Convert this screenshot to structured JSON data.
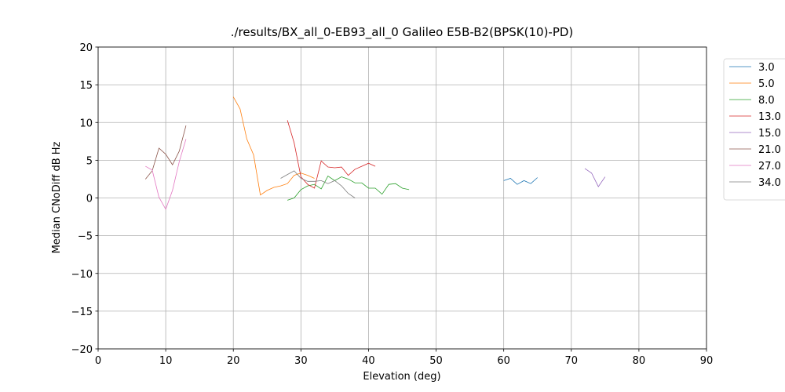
{
  "chart_data": {
    "type": "line",
    "title": "./results/BX_all_0-EB93_all_0 Galileo E5B-B2(BPSK(10)-PD)",
    "x_label": "Elevation (deg)",
    "y_label": "Median CNoDiff dB Hz",
    "xlim": [
      0,
      90
    ],
    "xticks": [
      0,
      10,
      20,
      30,
      40,
      50,
      60,
      70,
      80,
      90
    ],
    "ylim": [
      -20,
      20
    ],
    "yticks": [
      {
        "value": -20,
        "label": "−20"
      },
      {
        "value": -15,
        "label": "−15"
      },
      {
        "value": -10,
        "label": "−10"
      },
      {
        "value": -5,
        "label": "−5"
      },
      0,
      5,
      10,
      15,
      20
    ],
    "grid": true,
    "legend": "right",
    "series": [
      {
        "name": "3.0",
        "color": "#1f77b4",
        "x": [
          60,
          61,
          62,
          63,
          64,
          65
        ],
        "values": [
          2.3,
          2.6,
          1.8,
          2.3,
          1.9,
          2.7
        ]
      },
      {
        "name": "5.0",
        "color": "#ff7f0e",
        "x": [
          20,
          21,
          22,
          23,
          24,
          25,
          26,
          27,
          28,
          29,
          30,
          31,
          32
        ],
        "values": [
          13.4,
          11.8,
          7.8,
          5.7,
          0.4,
          1.0,
          1.4,
          1.6,
          1.9,
          3.0,
          3.3,
          3.0,
          2.6
        ]
      },
      {
        "name": "8.0",
        "color": "#2ca02c",
        "x": [
          28,
          29,
          30,
          31,
          32,
          33,
          34,
          35,
          36,
          37,
          38,
          39,
          40,
          41,
          42,
          43,
          44,
          45,
          46
        ],
        "values": [
          -0.3,
          0.0,
          1.1,
          1.6,
          1.8,
          1.2,
          2.9,
          2.3,
          2.8,
          2.5,
          2.0,
          2.0,
          1.3,
          1.3,
          0.5,
          1.8,
          1.9,
          1.3,
          1.1
        ]
      },
      {
        "name": "13.0",
        "color": "#d62728",
        "x": [
          28,
          29,
          30,
          31,
          32,
          33,
          34,
          35,
          36,
          37,
          38,
          39,
          40,
          41
        ],
        "values": [
          10.3,
          7.3,
          2.8,
          1.8,
          1.3,
          4.9,
          4.1,
          4.0,
          4.1,
          3.0,
          3.8,
          4.2,
          4.6,
          4.2
        ]
      },
      {
        "name": "15.0",
        "color": "#9467bd",
        "x": [
          72,
          73,
          74,
          75
        ],
        "values": [
          3.9,
          3.3,
          1.5,
          2.8
        ]
      },
      {
        "name": "21.0",
        "color": "#8c564b",
        "x": [
          7,
          8,
          9,
          10,
          11,
          12,
          13
        ],
        "values": [
          2.5,
          3.6,
          6.6,
          5.8,
          4.4,
          6.2,
          9.6
        ]
      },
      {
        "name": "27.0",
        "color": "#e377c2",
        "x": [
          7,
          8,
          9,
          10,
          11,
          12,
          13
        ],
        "values": [
          4.2,
          3.7,
          0.1,
          -1.5,
          1.0,
          4.8,
          7.8
        ]
      },
      {
        "name": "34.0",
        "color": "#7f7f7f",
        "x": [
          27,
          28,
          29,
          30,
          31,
          32,
          33,
          34,
          35,
          36,
          37,
          38
        ],
        "values": [
          2.6,
          3.1,
          3.6,
          2.6,
          2.2,
          2.2,
          2.3,
          1.9,
          2.3,
          1.6,
          0.6,
          0.0
        ]
      }
    ]
  }
}
